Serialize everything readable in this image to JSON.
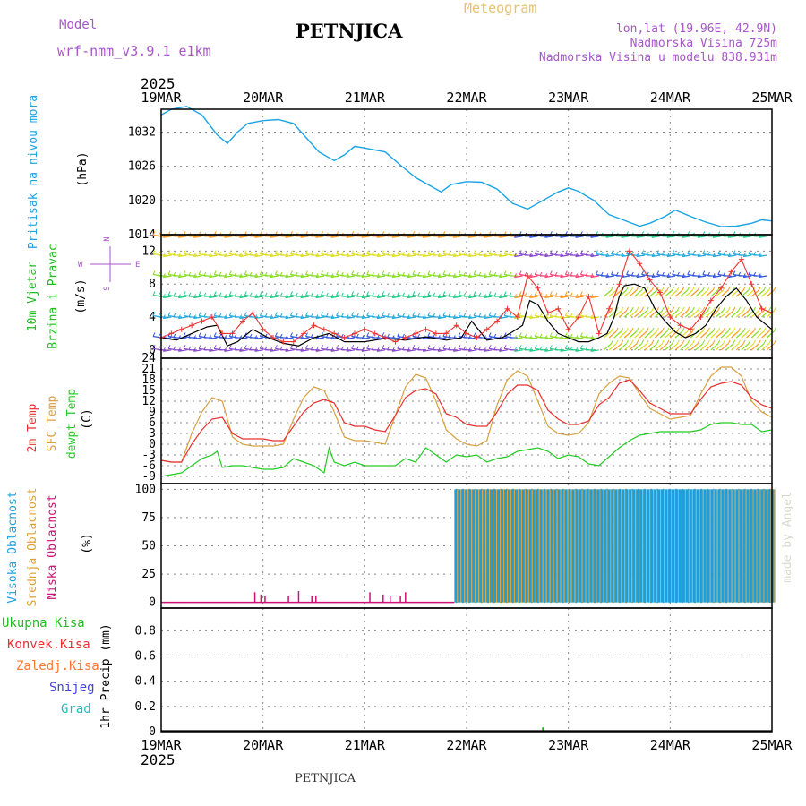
{
  "header": {
    "model_label": "Model",
    "model_name": "wrf-nmm_v3.9.1  e1km",
    "station_title": "PETNJICA",
    "meteogram_label": "Meteogram",
    "lonlat": "lon,lat (19.96E, 42.9N)",
    "elevation": "Nadmorska Visina 725m",
    "model_elevation": "Nadmorska Visina u modelu 838.931m",
    "footer_station": "PETNJICA",
    "credit": "made by Angel"
  },
  "colors": {
    "pressure": "#1aa4e6",
    "wind_label": "#22bb22",
    "wind_speed": "#000000",
    "gust": "#ee3333",
    "temp_2m": "#e83030",
    "temp_sfc": "#d8a040",
    "dewpoint": "#22cc22",
    "high_cloud": "#1aa0e0",
    "mid_cloud": "#e0a030",
    "low_cloud": "#cc1177",
    "total_precip": "#22bb22",
    "convective": "#e83030",
    "freezing": "#ff7733",
    "snow": "#4444dd",
    "hail": "#22bbbb",
    "label_purple": "#aa55cc",
    "label_orange": "#e8c070"
  },
  "chart_data": {
    "type": "line",
    "time_axis": {
      "year": "2025",
      "ticks": [
        "19MAR",
        "20MAR",
        "21MAR",
        "22MAR",
        "23MAR",
        "24MAR",
        "25MAR"
      ],
      "unit": "days since 19MAR 00UTC"
    },
    "panels": [
      {
        "id": "pressure",
        "ylabel": "Pritisak na nivou mora",
        "unit": "(hPa)",
        "yticks": [
          1014,
          1020,
          1026,
          1032
        ],
        "ylim": [
          1014,
          1036
        ],
        "series": [
          {
            "name": "Pritisak na nivou mora",
            "x": [
              0,
              0.1,
              0.25,
              0.4,
              0.55,
              0.65,
              0.75,
              0.85,
              1.0,
              1.15,
              1.3,
              1.4,
              1.55,
              1.7,
              1.8,
              1.9,
              2.0,
              2.2,
              2.35,
              2.5,
              2.65,
              2.75,
              2.85,
              3.0,
              3.15,
              3.3,
              3.45,
              3.6,
              3.75,
              3.9,
              4.0,
              4.1,
              4.25,
              4.4,
              4.55,
              4.7,
              4.8,
              4.95,
              5.05,
              5.2,
              5.35,
              5.5,
              5.65,
              5.8,
              5.9,
              6.0
            ],
            "y": [
              1035,
              1036,
              1036.5,
              1035,
              1031.5,
              1030,
              1032,
              1033.5,
              1034,
              1034.2,
              1033.5,
              1031.5,
              1028.5,
              1027,
              1028,
              1029.5,
              1029.2,
              1028.5,
              1026.2,
              1024,
              1022.5,
              1021.5,
              1022.8,
              1023.3,
              1023.2,
              1022,
              1019.5,
              1018.5,
              1020,
              1021.5,
              1022.2,
              1021.6,
              1020,
              1017.5,
              1016.5,
              1015.5,
              1016,
              1017.2,
              1018.3,
              1017.2,
              1016.2,
              1015.4,
              1015.5,
              1016,
              1016.6,
              1016.4
            ]
          }
        ]
      },
      {
        "id": "wind",
        "ylabel": "10m Vjetar",
        "ylabel2": "Brzina i Pravac",
        "unit": "(m/s)",
        "compass": [
          "N",
          "W",
          "E",
          "S"
        ],
        "yticks": [
          0,
          4,
          8,
          12
        ],
        "ylim": [
          -1,
          14
        ],
        "series": [
          {
            "name": "Brzina",
            "x": [
              0,
              0.15,
              0.3,
              0.45,
              0.55,
              0.65,
              0.75,
              0.9,
              1.05,
              1.2,
              1.35,
              1.5,
              1.65,
              1.8,
              2.0,
              2.2,
              2.4,
              2.6,
              2.8,
              2.95,
              3.05,
              3.2,
              3.35,
              3.45,
              3.55,
              3.62,
              3.7,
              3.8,
              3.9,
              4.0,
              4.1,
              4.2,
              4.3,
              4.38,
              4.45,
              4.5,
              4.55,
              4.65,
              4.75,
              4.85,
              4.95,
              5.05,
              5.15,
              5.25,
              5.35,
              5.45,
              5.55,
              5.65,
              5.75,
              5.85,
              5.95,
              6.0
            ],
            "y": [
              1.5,
              1.2,
              2.0,
              2.8,
              3.0,
              0.5,
              1.0,
              2.5,
              1.5,
              0.8,
              0.5,
              1.5,
              2.0,
              1.0,
              1.0,
              1.4,
              1.2,
              1.6,
              1.2,
              1.5,
              3.5,
              1.2,
              1.5,
              2.2,
              3.0,
              6.0,
              5.5,
              3.5,
              2.0,
              1.5,
              1.0,
              1.0,
              1.5,
              2.0,
              4.0,
              6.5,
              7.8,
              8.0,
              7.5,
              5.0,
              3.5,
              2.2,
              1.5,
              2.0,
              3.0,
              5.0,
              6.5,
              7.5,
              6.0,
              4.0,
              3.0,
              2.5
            ]
          },
          {
            "name": "Udari",
            "x": [
              0,
              0.1,
              0.2,
              0.3,
              0.4,
              0.5,
              0.6,
              0.7,
              0.8,
              0.9,
              1.0,
              1.1,
              1.2,
              1.3,
              1.4,
              1.5,
              1.6,
              1.7,
              1.8,
              1.9,
              2.0,
              2.1,
              2.2,
              2.3,
              2.4,
              2.5,
              2.6,
              2.7,
              2.8,
              2.9,
              3.0,
              3.1,
              3.2,
              3.3,
              3.4,
              3.5,
              3.6,
              3.7,
              3.8,
              3.9,
              4.0,
              4.1,
              4.2,
              4.3,
              4.4,
              4.5,
              4.6,
              4.7,
              4.8,
              4.9,
              5.0,
              5.1,
              5.2,
              5.3,
              5.4,
              5.5,
              5.6,
              5.7,
              5.8,
              5.9,
              6.0
            ],
            "y": [
              1.5,
              2.0,
              2.5,
              3.0,
              3.5,
              4.0,
              2.0,
              2.0,
              3.5,
              4.5,
              2.5,
              1.5,
              1.0,
              1.0,
              2.0,
              3.0,
              2.5,
              2.0,
              1.5,
              2.0,
              2.5,
              2.0,
              1.5,
              1.0,
              1.5,
              2.0,
              2.5,
              2.0,
              2.0,
              3.0,
              2.0,
              1.5,
              2.5,
              3.5,
              5.0,
              4.0,
              9.0,
              7.5,
              4.5,
              5.0,
              2.5,
              4.0,
              6.5,
              2.0,
              5.0,
              8.0,
              12.0,
              10.5,
              8.5,
              7.0,
              4.0,
              3.0,
              2.5,
              4.0,
              6.0,
              7.5,
              9.5,
              11.0,
              8.0,
              5.0,
              4.5
            ]
          }
        ]
      },
      {
        "id": "temperature",
        "ylabel": "2m Temp",
        "ylabel2": "SFC Temp",
        "ylabel3": "dewpt Temp",
        "unit": "(C)",
        "yticks": [
          -9,
          -6,
          -3,
          0,
          3,
          6,
          9,
          12,
          15,
          18,
          21,
          24
        ],
        "ylim": [
          -11,
          24
        ],
        "series": [
          {
            "name": "2m Temp",
            "x": [
              0,
              0.1,
              0.2,
              0.3,
              0.4,
              0.5,
              0.6,
              0.7,
              0.8,
              0.9,
              1.0,
              1.1,
              1.2,
              1.3,
              1.4,
              1.5,
              1.6,
              1.7,
              1.8,
              1.9,
              2.0,
              2.1,
              2.2,
              2.3,
              2.4,
              2.5,
              2.6,
              2.7,
              2.8,
              2.9,
              3.0,
              3.1,
              3.2,
              3.3,
              3.4,
              3.5,
              3.6,
              3.7,
              3.8,
              3.9,
              4.0,
              4.1,
              4.2,
              4.3,
              4.4,
              4.5,
              4.6,
              4.7,
              4.8,
              4.9,
              5.0,
              5.1,
              5.2,
              5.3,
              5.4,
              5.5,
              5.6,
              5.7,
              5.8,
              5.9,
              6.0
            ],
            "y": [
              -4.5,
              -5,
              -5,
              0,
              4,
              7,
              7.5,
              3,
              1.5,
              1.5,
              1.5,
              1,
              1,
              5,
              9,
              11.5,
              12.5,
              11.5,
              6,
              5,
              5,
              4,
              3.5,
              8,
              13,
              15,
              15.5,
              14,
              8.5,
              7.5,
              5.5,
              5,
              5,
              9,
              14,
              16.5,
              16.5,
              15,
              9.5,
              7,
              5.5,
              5.5,
              6.5,
              11,
              13,
              17,
              18,
              15,
              11.5,
              10,
              8.5,
              8.5,
              8.5,
              12.5,
              16,
              17,
              17.5,
              16.5,
              13,
              11,
              10
            ]
          },
          {
            "name": "SFC Temp",
            "x": [
              0,
              0.1,
              0.2,
              0.3,
              0.4,
              0.5,
              0.6,
              0.7,
              0.8,
              0.9,
              1.0,
              1.1,
              1.2,
              1.3,
              1.4,
              1.5,
              1.6,
              1.7,
              1.8,
              1.9,
              2.0,
              2.1,
              2.2,
              2.3,
              2.4,
              2.5,
              2.6,
              2.7,
              2.8,
              2.9,
              3.0,
              3.1,
              3.2,
              3.3,
              3.4,
              3.5,
              3.6,
              3.7,
              3.8,
              3.9,
              4.0,
              4.1,
              4.2,
              4.3,
              4.4,
              4.5,
              4.6,
              4.7,
              4.8,
              4.9,
              5.0,
              5.1,
              5.2,
              5.3,
              5.4,
              5.5,
              5.6,
              5.7,
              5.8,
              5.9,
              6.0
            ],
            "y": [
              -4.5,
              -5,
              -5,
              3,
              9,
              13,
              12,
              2,
              0,
              -0.5,
              -0.5,
              -0.5,
              0,
              7,
              13,
              16,
              15,
              9,
              2,
              1,
              1,
              0.5,
              0,
              8,
              16,
              19.5,
              18.5,
              12,
              4,
              1.5,
              0,
              -0.5,
              1,
              11,
              18,
              20.5,
              19,
              12,
              5,
              3,
              2.5,
              3,
              6,
              14,
              17,
              19,
              18.5,
              14,
              10,
              8.5,
              7,
              7.5,
              8,
              14,
              19,
              21.5,
              21.5,
              19,
              12,
              9,
              7.5
            ]
          },
          {
            "name": "dewpt Temp",
            "x": [
              0,
              0.1,
              0.2,
              0.3,
              0.4,
              0.5,
              0.55,
              0.6,
              0.7,
              0.8,
              0.9,
              1.0,
              1.1,
              1.2,
              1.3,
              1.4,
              1.5,
              1.6,
              1.65,
              1.7,
              1.8,
              1.9,
              2.0,
              2.1,
              2.2,
              2.3,
              2.4,
              2.5,
              2.6,
              2.7,
              2.8,
              2.9,
              3.0,
              3.1,
              3.2,
              3.3,
              3.4,
              3.5,
              3.6,
              3.7,
              3.8,
              3.9,
              4.0,
              4.1,
              4.2,
              4.3,
              4.4,
              4.5,
              4.6,
              4.7,
              4.8,
              4.9,
              5.0,
              5.1,
              5.2,
              5.3,
              5.4,
              5.5,
              5.6,
              5.7,
              5.8,
              5.9,
              6.0
            ],
            "y": [
              -9,
              -8.5,
              -8,
              -6,
              -4,
              -3,
              -2,
              -6.5,
              -6,
              -6,
              -6.5,
              -7,
              -7,
              -6.5,
              -4,
              -5,
              -6,
              -8,
              -1,
              -5,
              -6,
              -5,
              -6,
              -6,
              -6,
              -6,
              -4,
              -5,
              -1,
              -3,
              -5,
              -3,
              -3.5,
              -3,
              -5,
              -4,
              -3.5,
              -2,
              -1.5,
              -1,
              -2,
              -4,
              -3,
              -3.5,
              -5.5,
              -6,
              -3.5,
              -1,
              1,
              2.5,
              3,
              3.5,
              3.5,
              3.5,
              3.5,
              4,
              5.5,
              6,
              6,
              5.5,
              5.5,
              3.5,
              4
            ]
          }
        ]
      },
      {
        "id": "clouds",
        "ylabel": "Visoka Oblacnost",
        "ylabel2": "Srednja Oblacnost",
        "ylabel3": "Niska Oblacnost",
        "unit": "(%)",
        "yticks": [
          0,
          25,
          50,
          75,
          100
        ],
        "ylim": [
          -5,
          105
        ],
        "series": [
          {
            "name": "Niska Oblacnost",
            "x": [
              0.92,
              0.98,
              1.02,
              1.25,
              1.35,
              1.48,
              1.52,
              2.05,
              2.18,
              2.25,
              2.35,
              2.4
            ],
            "y": [
              9,
              7,
              6,
              6,
              10,
              6,
              6,
              9,
              7,
              6,
              6,
              9
            ]
          }
        ],
        "high_cloud_start": 2.88,
        "mid_cloud_start": 2.9,
        "cloud_level": 100
      },
      {
        "id": "precip",
        "ylabel": "1hr Precip",
        "unit": "(mm)",
        "legend": [
          "Ukupna  Kisa",
          "Konvek.Kisa",
          "Zaledj.Kisa",
          "Snijeg",
          "Grad"
        ],
        "yticks": [
          0,
          0.2,
          0.4,
          0.6,
          0.8
        ],
        "yticklabels": [
          "0",
          "0.2",
          "0.4",
          "0.6",
          "0.8"
        ],
        "ylim": [
          0,
          0.98
        ],
        "series": [
          {
            "name": "Ukupna  Kisa",
            "x": [
              3.75
            ],
            "y": [
              0.02
            ]
          }
        ]
      }
    ]
  }
}
